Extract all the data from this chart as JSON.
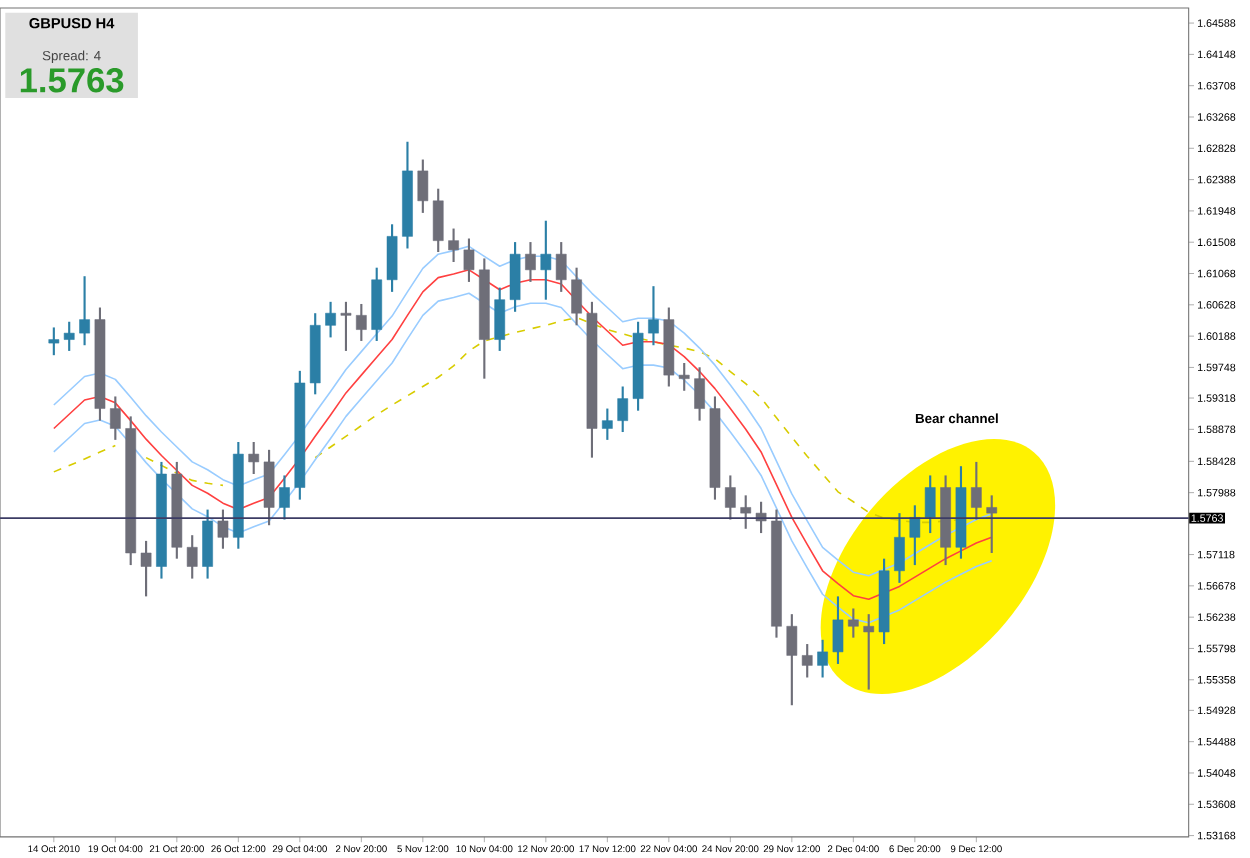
{
  "chart_data": {
    "type": "candlestick",
    "title": "GBPUSD  H4",
    "subtitle": "Spread: 4",
    "annotations": [
      "1.5763",
      "Bear channel"
    ],
    "categories": [
      "14 Oct 2010",
      null,
      null,
      null,
      "19 Oct 04:00",
      null,
      null,
      null,
      "21 Oct 20:00",
      null,
      null,
      null,
      "26 Oct 12:00",
      null,
      null,
      null,
      "29 Oct 04:00",
      null,
      null,
      null,
      "2 Nov 20:00",
      null,
      null,
      null,
      "5 Nov 12:00",
      null,
      null,
      null,
      "10 Nov 04:00",
      null,
      null,
      null,
      "12 Nov 20:00",
      null,
      null,
      null,
      "17 Nov 12:00",
      null,
      null,
      null,
      "22 Nov 04:00",
      null,
      null,
      null,
      "24 Nov 20:00",
      null,
      null,
      null,
      "29 Nov 12:00",
      null,
      null,
      null,
      "2 Dec 04:00",
      null,
      null,
      null,
      "6 Dec 20:00",
      null,
      null,
      null,
      "9 Dec 12:00",
      null
    ],
    "ohlc": [
      [
        1.6009,
        1.6031,
        1.5992,
        1.6014
      ],
      [
        1.6014,
        1.6039,
        1.5998,
        1.6023
      ],
      [
        1.6023,
        1.6103,
        1.6006,
        1.6042
      ],
      [
        1.6042,
        1.6059,
        1.59,
        1.5917
      ],
      [
        1.5917,
        1.5934,
        1.5873,
        1.5889
      ],
      [
        1.5889,
        1.5906,
        1.5697,
        1.5714
      ],
      [
        1.5714,
        1.5731,
        1.5653,
        1.5695
      ],
      [
        1.5695,
        1.5842,
        1.5678,
        1.5825
      ],
      [
        1.5825,
        1.5842,
        1.5706,
        1.5722
      ],
      [
        1.5722,
        1.5739,
        1.5678,
        1.5695
      ],
      [
        1.5695,
        1.5775,
        1.5678,
        1.5759
      ],
      [
        1.5759,
        1.5775,
        1.572,
        1.5736
      ],
      [
        1.5736,
        1.587,
        1.572,
        1.5853
      ],
      [
        1.5853,
        1.587,
        1.5825,
        1.5842
      ],
      [
        1.5842,
        1.5859,
        1.5753,
        1.5778
      ],
      [
        1.5778,
        1.5823,
        1.5761,
        1.5806
      ],
      [
        1.5806,
        1.597,
        1.5789,
        1.5953
      ],
      [
        1.5953,
        1.6051,
        1.5937,
        1.6034
      ],
      [
        1.6034,
        1.6067,
        1.6017,
        1.6051
      ],
      [
        1.6051,
        1.6067,
        1.5998,
        1.6048
      ],
      [
        1.6048,
        1.6064,
        1.6012,
        1.6028
      ],
      [
        1.6028,
        1.6115,
        1.6012,
        1.6098
      ],
      [
        1.6098,
        1.6176,
        1.6081,
        1.6159
      ],
      [
        1.6159,
        1.6292,
        1.6142,
        1.6251
      ],
      [
        1.6251,
        1.6267,
        1.6192,
        1.6209
      ],
      [
        1.6209,
        1.6226,
        1.6137,
        1.6153
      ],
      [
        1.6153,
        1.617,
        1.6123,
        1.614
      ],
      [
        1.614,
        1.6156,
        1.6095,
        1.6112
      ],
      [
        1.6112,
        1.6128,
        1.5959,
        1.6014
      ],
      [
        1.6014,
        1.6087,
        1.5998,
        1.607
      ],
      [
        1.607,
        1.6151,
        1.6053,
        1.6134
      ],
      [
        1.6134,
        1.6151,
        1.6095,
        1.6112
      ],
      [
        1.6112,
        1.6181,
        1.607,
        1.6134
      ],
      [
        1.6134,
        1.6151,
        1.6081,
        1.6098
      ],
      [
        1.6098,
        1.6115,
        1.6034,
        1.6051
      ],
      [
        1.6051,
        1.6067,
        1.5848,
        1.5889
      ],
      [
        1.5889,
        1.5917,
        1.5873,
        1.59
      ],
      [
        1.59,
        1.5948,
        1.5884,
        1.5931
      ],
      [
        1.5931,
        1.6039,
        1.5914,
        1.6023
      ],
      [
        1.6023,
        1.6089,
        1.6006,
        1.6042
      ],
      [
        1.6042,
        1.6059,
        1.5948,
        1.5964
      ],
      [
        1.5964,
        1.5981,
        1.5942,
        1.5959
      ],
      [
        1.5959,
        1.5975,
        1.59,
        1.5917
      ],
      [
        1.5917,
        1.5934,
        1.5789,
        1.5806
      ],
      [
        1.5806,
        1.5823,
        1.5761,
        1.5778
      ],
      [
        1.5778,
        1.5795,
        1.5748,
        1.577
      ],
      [
        1.577,
        1.5786,
        1.5742,
        1.5759
      ],
      [
        1.5759,
        1.5775,
        1.5595,
        1.5611
      ],
      [
        1.5611,
        1.5628,
        1.55,
        1.557
      ],
      [
        1.557,
        1.5586,
        1.5539,
        1.5556
      ],
      [
        1.5556,
        1.5592,
        1.5539,
        1.5575
      ],
      [
        1.5575,
        1.5653,
        1.5558,
        1.562
      ],
      [
        1.562,
        1.5636,
        1.5595,
        1.5611
      ],
      [
        1.5611,
        1.5628,
        1.5522,
        1.5603
      ],
      [
        1.5603,
        1.5706,
        1.5586,
        1.5689
      ],
      [
        1.5689,
        1.577,
        1.5672,
        1.5736
      ],
      [
        1.5736,
        1.5781,
        1.5697,
        1.5764
      ],
      [
        1.5764,
        1.5823,
        1.5742,
        1.5806
      ],
      [
        1.5806,
        1.5823,
        1.5697,
        1.5722
      ],
      [
        1.5722,
        1.5836,
        1.5706,
        1.5806
      ],
      [
        1.5806,
        1.5842,
        1.5761,
        1.5778
      ],
      [
        1.5778,
        1.5795,
        1.5714,
        1.577
      ]
    ],
    "colors": [
      "#2b7fa6",
      "#2b7fa6",
      "#2b7fa6",
      "#6e6e78",
      "#6e6e78",
      "#6e6e78",
      "#6e6e78",
      "#2b7fa6",
      "#6e6e78",
      "#6e6e78",
      "#2b7fa6",
      "#6e6e78",
      "#2b7fa6",
      "#6e6e78",
      "#6e6e78",
      "#2b7fa6",
      "#2b7fa6",
      "#2b7fa6",
      "#2b7fa6",
      "#6e6e78",
      "#6e6e78",
      "#2b7fa6",
      "#2b7fa6",
      "#2b7fa6",
      "#6e6e78",
      "#6e6e78",
      "#6e6e78",
      "#6e6e78",
      "#6e6e78",
      "#2b7fa6",
      "#2b7fa6",
      "#6e6e78",
      "#2b7fa6",
      "#6e6e78",
      "#6e6e78",
      "#6e6e78",
      "#2b7fa6",
      "#2b7fa6",
      "#2b7fa6",
      "#2b7fa6",
      "#6e6e78",
      "#6e6e78",
      "#6e6e78",
      "#6e6e78",
      "#6e6e78",
      "#6e6e78",
      "#6e6e78",
      "#6e6e78",
      "#6e6e78",
      "#6e6e78",
      "#2b7fa6",
      "#2b7fa6",
      "#6e6e78",
      "#6e6e78",
      "#2b7fa6",
      "#2b7fa6",
      "#2b7fa6",
      "#2b7fa6",
      "#6e6e78",
      "#2b7fa6",
      "#6e6e78",
      "#6e6e78"
    ],
    "series": [
      {
        "type": "line",
        "color": "#d8cc00",
        "line_style": "dashed",
        "values": [
          1.5828,
          1.5837,
          1.5846,
          1.5856,
          1.5865,
          null,
          1.5848,
          1.5837,
          1.5826,
          1.5816,
          1.5812,
          1.5809,
          null,
          null,
          null,
          null,
          null,
          1.5848,
          1.5863,
          1.5878,
          1.5893,
          1.5908,
          1.5922,
          1.5935,
          1.5948,
          1.5961,
          1.5977,
          1.5998,
          1.6012,
          1.6018,
          1.6024,
          1.6029,
          1.6034,
          1.604,
          1.6045,
          1.6036,
          1.6028,
          1.6022,
          1.6016,
          1.6011,
          1.6006,
          1.6002,
          1.5997,
          1.5987,
          1.5969,
          1.5952,
          1.5932,
          1.5904,
          1.5877,
          1.585,
          1.5825,
          1.58,
          1.5786,
          1.5771,
          1.5763,
          1.576,
          1.5757,
          1.5757,
          1.5759,
          1.5761,
          1.5763,
          1.5764
        ]
      },
      {
        "type": "line",
        "color": "#99ccff",
        "values": [
          1.5922,
          1.5942,
          1.5962,
          1.5967,
          1.5958,
          1.5933,
          1.5907,
          1.5884,
          1.5863,
          1.5842,
          1.5831,
          1.5817,
          1.5808,
          1.5817,
          1.5825,
          1.5852,
          1.588,
          1.5911,
          1.5941,
          1.5972,
          1.5997,
          1.6022,
          1.6047,
          1.6081,
          1.6114,
          1.6134,
          1.6139,
          1.6145,
          1.6131,
          1.6117,
          1.6126,
          1.6131,
          1.6131,
          1.6125,
          1.6102,
          1.6079,
          1.6059,
          1.6039,
          1.6044,
          1.6044,
          1.604,
          1.6023,
          1.6002,
          1.5978,
          1.595,
          1.5921,
          1.5889,
          1.5843,
          1.5797,
          1.5759,
          1.5722,
          1.5704,
          1.5687,
          1.5682,
          1.5691,
          1.57,
          1.5713,
          1.5726,
          1.5739,
          1.575,
          1.5761,
          1.5769
        ]
      },
      {
        "type": "line",
        "color": "#99ccff",
        "values": [
          1.5856,
          1.5876,
          1.5896,
          1.5901,
          1.5892,
          1.5867,
          1.5841,
          1.5818,
          1.5797,
          1.5776,
          1.5765,
          1.5751,
          1.5742,
          1.5751,
          1.5759,
          1.5786,
          1.5814,
          1.5845,
          1.5875,
          1.5906,
          1.5931,
          1.5956,
          1.5981,
          1.6015,
          1.6048,
          1.6068,
          1.6073,
          1.6079,
          1.6065,
          1.6051,
          1.606,
          1.6065,
          1.6065,
          1.6059,
          1.6036,
          1.6013,
          1.5993,
          1.5973,
          1.5978,
          1.5978,
          1.5974,
          1.5957,
          1.5936,
          1.5912,
          1.5884,
          1.5855,
          1.5823,
          1.5777,
          1.5731,
          1.5693,
          1.5656,
          1.5638,
          1.5621,
          1.5616,
          1.5625,
          1.5634,
          1.5647,
          1.566,
          1.5673,
          1.5684,
          1.5695,
          1.5703
        ]
      },
      {
        "type": "line",
        "color": "#ff4040",
        "values": [
          1.5889,
          1.5909,
          1.5929,
          1.5934,
          1.5925,
          1.59,
          1.5874,
          1.5851,
          1.583,
          1.5809,
          1.5798,
          1.5784,
          1.5775,
          1.5784,
          1.5792,
          1.5819,
          1.5847,
          1.5878,
          1.5908,
          1.5939,
          1.5964,
          1.5989,
          1.6014,
          1.6048,
          1.6081,
          1.6101,
          1.6106,
          1.6112,
          1.6098,
          1.6084,
          1.6093,
          1.6098,
          1.6098,
          1.6092,
          1.6069,
          1.6046,
          1.6026,
          1.6006,
          1.6011,
          1.6011,
          1.6007,
          1.599,
          1.5969,
          1.5945,
          1.5917,
          1.5888,
          1.5856,
          1.581,
          1.5764,
          1.5726,
          1.5689,
          1.5671,
          1.5654,
          1.5649,
          1.5658,
          1.5667,
          1.568,
          1.5693,
          1.5706,
          1.5717,
          1.5728,
          1.5736
        ]
      }
    ],
    "ylim": [
      1.5315,
      1.648
    ],
    "yticks": [
      1.64588,
      1.64148,
      1.63708,
      1.63268,
      1.62828,
      1.62388,
      1.61948,
      1.61508,
      1.61068,
      1.60628,
      1.60188,
      1.59748,
      1.59318,
      1.58878,
      1.58428,
      1.57988,
      1.57118,
      1.56678,
      1.56238,
      1.55798,
      1.55358,
      1.54928,
      1.54488,
      1.54048,
      1.53608,
      1.53168
    ],
    "ref_lines": [
      {
        "axis": "y",
        "value": 1.5763,
        "label": "1.5763",
        "color": "#3c3c64"
      }
    ]
  }
}
